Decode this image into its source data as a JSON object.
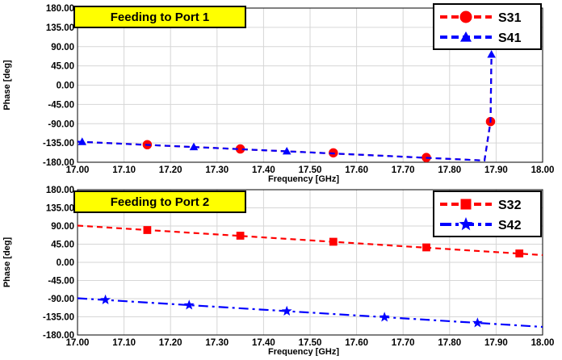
{
  "chart_data": [
    {
      "type": "line",
      "title": "Feeding to Port 1",
      "xlabel": "Frequency [GHz]",
      "ylabel": "Phase [deg]",
      "xlim": [
        17.0,
        18.0
      ],
      "ylim": [
        -180,
        180
      ],
      "x_ticks": [
        "17.00",
        "17.10",
        "17.20",
        "17.30",
        "17.40",
        "17.50",
        "17.60",
        "17.70",
        "17.80",
        "17.90",
        "18.00"
      ],
      "y_ticks": [
        "180.00",
        "135.00",
        "90.00",
        "45.00",
        "0.00",
        "-45.00",
        "-90.00",
        "-135.00",
        "-180.00"
      ],
      "grid": true,
      "legend_position": "top-right",
      "series": [
        {
          "name": "S31",
          "color": "#ff0000",
          "marker": "circle",
          "dash": "dash",
          "x": [
            17.0,
            17.5,
            17.875,
            17.888,
            17.89
          ],
          "y": [
            -132,
            -157,
            -176,
            -85,
            70
          ],
          "marker_x": [
            17.15,
            17.35,
            17.55,
            17.75,
            17.888
          ],
          "marker_y": [
            -139,
            -149,
            -158,
            -169,
            -85
          ]
        },
        {
          "name": "S41",
          "color": "#0000ff",
          "marker": "triangle",
          "dash": "dash",
          "x": [
            17.0,
            17.5,
            17.875,
            17.888,
            17.89
          ],
          "y": [
            -132,
            -157,
            -176,
            -85,
            72
          ],
          "marker_x": [
            17.01,
            17.25,
            17.45,
            17.89
          ],
          "marker_y": [
            -132,
            -144,
            -154,
            72
          ]
        }
      ]
    },
    {
      "type": "line",
      "title": "Feeding to Port 2",
      "xlabel": "Frequency [GHz]",
      "ylabel": "Phase [deg]",
      "xlim": [
        17.0,
        18.0
      ],
      "ylim": [
        -180,
        180
      ],
      "x_ticks": [
        "17.00",
        "17.10",
        "17.20",
        "17.30",
        "17.40",
        "17.50",
        "17.60",
        "17.70",
        "17.80",
        "17.90",
        "18.00"
      ],
      "y_ticks": [
        "180.00",
        "135.00",
        "90.00",
        "45.00",
        "0.00",
        "-45.00",
        "-90.00",
        "-135.00",
        "-180.00"
      ],
      "grid": true,
      "legend_position": "top-right",
      "series": [
        {
          "name": "S32",
          "color": "#ff0000",
          "marker": "square",
          "dash": "dash",
          "x": [
            17.0,
            18.0
          ],
          "y": [
            91,
            18
          ],
          "marker_x": [
            17.15,
            17.35,
            17.55,
            17.75,
            17.95
          ],
          "marker_y": [
            80,
            66,
            51,
            37,
            22
          ]
        },
        {
          "name": "S42",
          "color": "#0000ff",
          "marker": "star",
          "dash": "dashdot",
          "x": [
            17.0,
            18.0
          ],
          "y": [
            -89,
            -160
          ],
          "marker_x": [
            17.06,
            17.24,
            17.45,
            17.66,
            17.86
          ],
          "marker_y": [
            -93,
            -106,
            -121,
            -136,
            -150
          ]
        }
      ]
    }
  ]
}
